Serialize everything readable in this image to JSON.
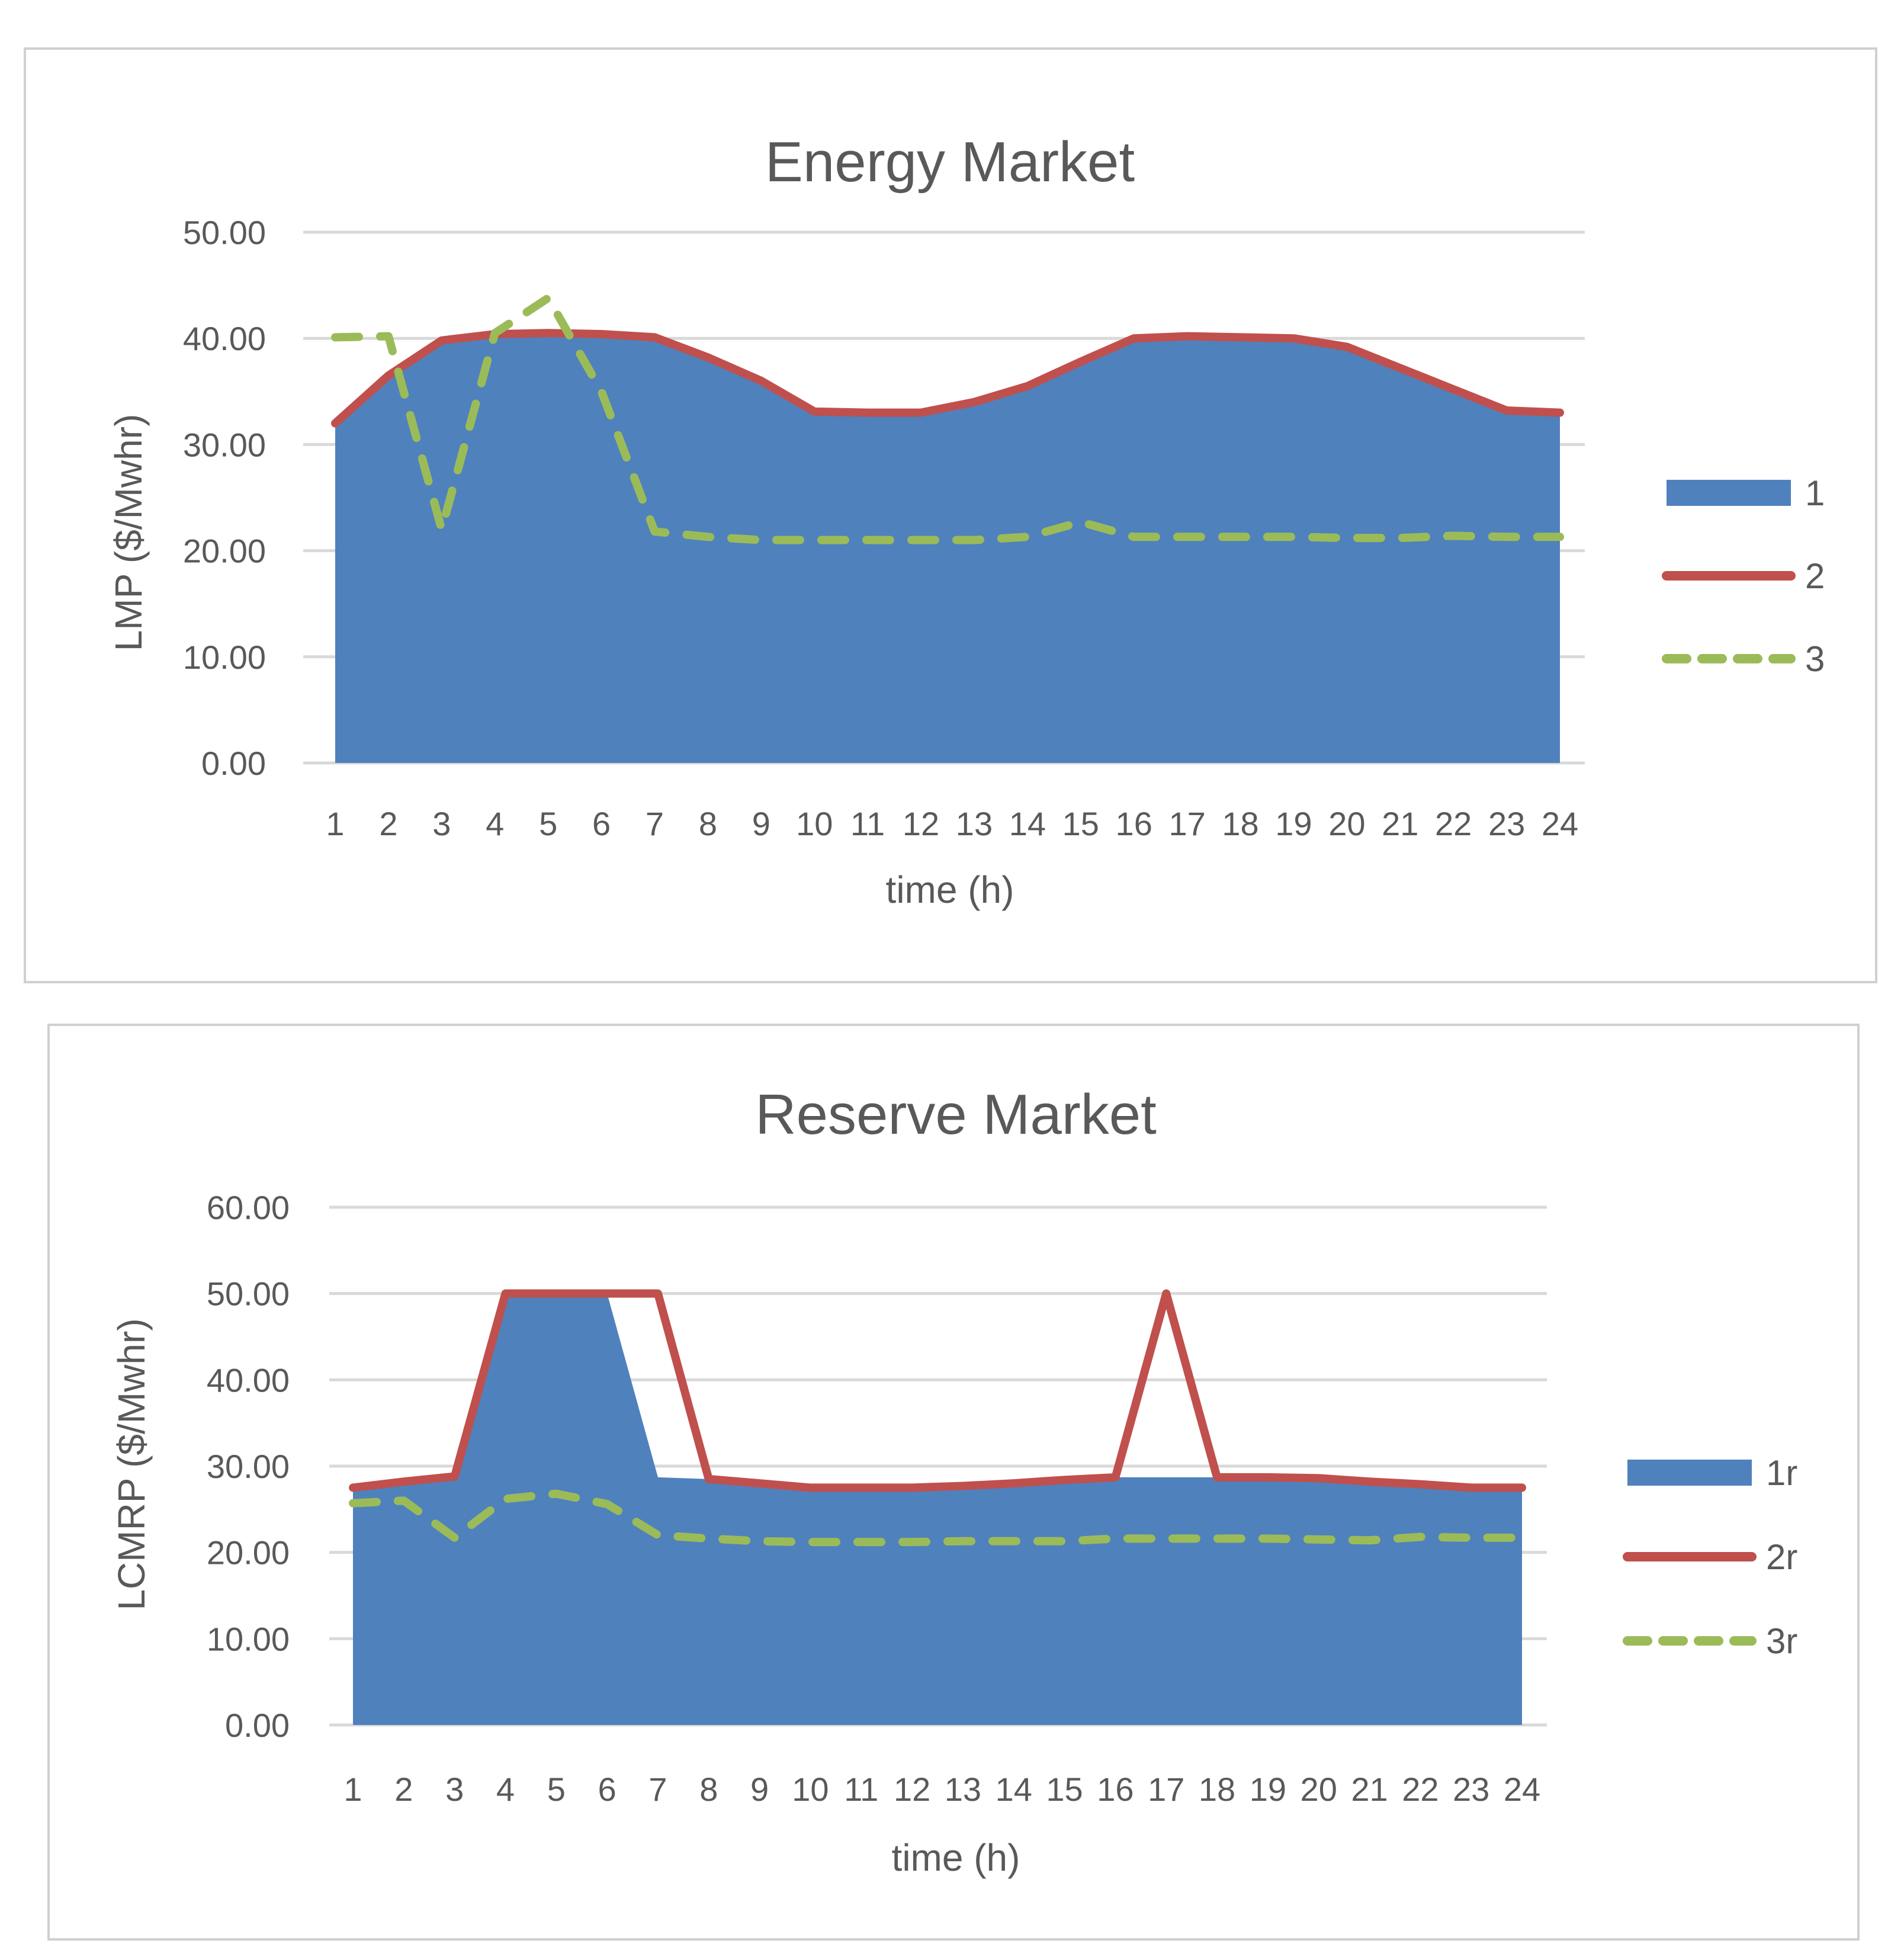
{
  "chart_data": [
    {
      "type": "area+line",
      "title": "Energy Market",
      "xlabel": "time (h)",
      "ylabel": "LMP ($/Mwhr)",
      "ylim": [
        0,
        50
      ],
      "yticks": [
        "0.00",
        "10.00",
        "20.00",
        "30.00",
        "40.00",
        "50.00"
      ],
      "categories": [
        "1",
        "2",
        "3",
        "4",
        "5",
        "6",
        "7",
        "8",
        "9",
        "10",
        "11",
        "12",
        "13",
        "14",
        "15",
        "16",
        "17",
        "18",
        "19",
        "20",
        "21",
        "22",
        "23",
        "24"
      ],
      "grid": true,
      "legend_position": "right",
      "series": [
        {
          "name": "1",
          "style": "area",
          "color": "#4F81BD",
          "values": [
            32.0,
            36.5,
            39.8,
            40.4,
            40.5,
            40.4,
            40.1,
            38.2,
            36.0,
            33.1,
            33.0,
            33.0,
            34.0,
            35.5,
            37.8,
            40.0,
            40.2,
            40.1,
            40.0,
            39.2,
            37.2,
            35.2,
            33.2,
            33.0
          ]
        },
        {
          "name": "2",
          "style": "solid",
          "color": "#C0504D",
          "values": [
            32.0,
            36.5,
            39.8,
            40.4,
            40.5,
            40.4,
            40.1,
            38.2,
            36.0,
            33.1,
            33.0,
            33.0,
            34.0,
            35.5,
            37.8,
            40.0,
            40.2,
            40.1,
            40.0,
            39.2,
            37.2,
            35.2,
            33.2,
            33.0
          ]
        },
        {
          "name": "3",
          "style": "dashed",
          "color": "#9BBB59",
          "values": [
            40.1,
            40.2,
            22.0,
            40.5,
            43.8,
            35.0,
            21.8,
            21.3,
            21.0,
            21.0,
            21.0,
            21.0,
            21.0,
            21.3,
            22.7,
            21.3,
            21.3,
            21.3,
            21.3,
            21.2,
            21.2,
            21.4,
            21.3,
            21.3
          ]
        }
      ]
    },
    {
      "type": "area+line",
      "title": "Reserve Market",
      "xlabel": "time (h)",
      "ylabel": "LCMRP ($/Mwhr)",
      "ylim": [
        0,
        60
      ],
      "yticks": [
        "0.00",
        "10.00",
        "20.00",
        "30.00",
        "40.00",
        "50.00",
        "60.00"
      ],
      "categories": [
        "1",
        "2",
        "3",
        "4",
        "5",
        "6",
        "7",
        "8",
        "9",
        "10",
        "11",
        "12",
        "13",
        "14",
        "15",
        "16",
        "17",
        "18",
        "19",
        "20",
        "21",
        "22",
        "23",
        "24"
      ],
      "grid": true,
      "legend_position": "right",
      "series": [
        {
          "name": "1r",
          "style": "area",
          "color": "#4F81BD",
          "values": [
            27.5,
            28.2,
            28.8,
            50.0,
            50.0,
            50.0,
            28.7,
            28.5,
            28.0,
            27.5,
            27.5,
            27.5,
            27.7,
            28.0,
            28.4,
            28.7,
            28.7,
            28.7,
            28.7,
            28.6,
            28.2,
            27.9,
            27.5,
            27.5
          ]
        },
        {
          "name": "2r",
          "style": "solid",
          "color": "#C0504D",
          "values": [
            27.5,
            28.2,
            28.8,
            50.0,
            50.0,
            50.0,
            50.0,
            28.5,
            28.0,
            27.5,
            27.5,
            27.5,
            27.7,
            28.0,
            28.4,
            28.7,
            50.0,
            28.7,
            28.7,
            28.6,
            28.2,
            27.9,
            27.5,
            27.5
          ]
        },
        {
          "name": "3r",
          "style": "dashed",
          "color": "#9BBB59",
          "values": [
            25.7,
            26.0,
            21.7,
            26.2,
            26.8,
            25.6,
            22.0,
            21.6,
            21.3,
            21.2,
            21.2,
            21.2,
            21.3,
            21.3,
            21.3,
            21.6,
            21.6,
            21.6,
            21.6,
            21.5,
            21.4,
            21.8,
            21.7,
            21.7
          ]
        }
      ]
    }
  ]
}
